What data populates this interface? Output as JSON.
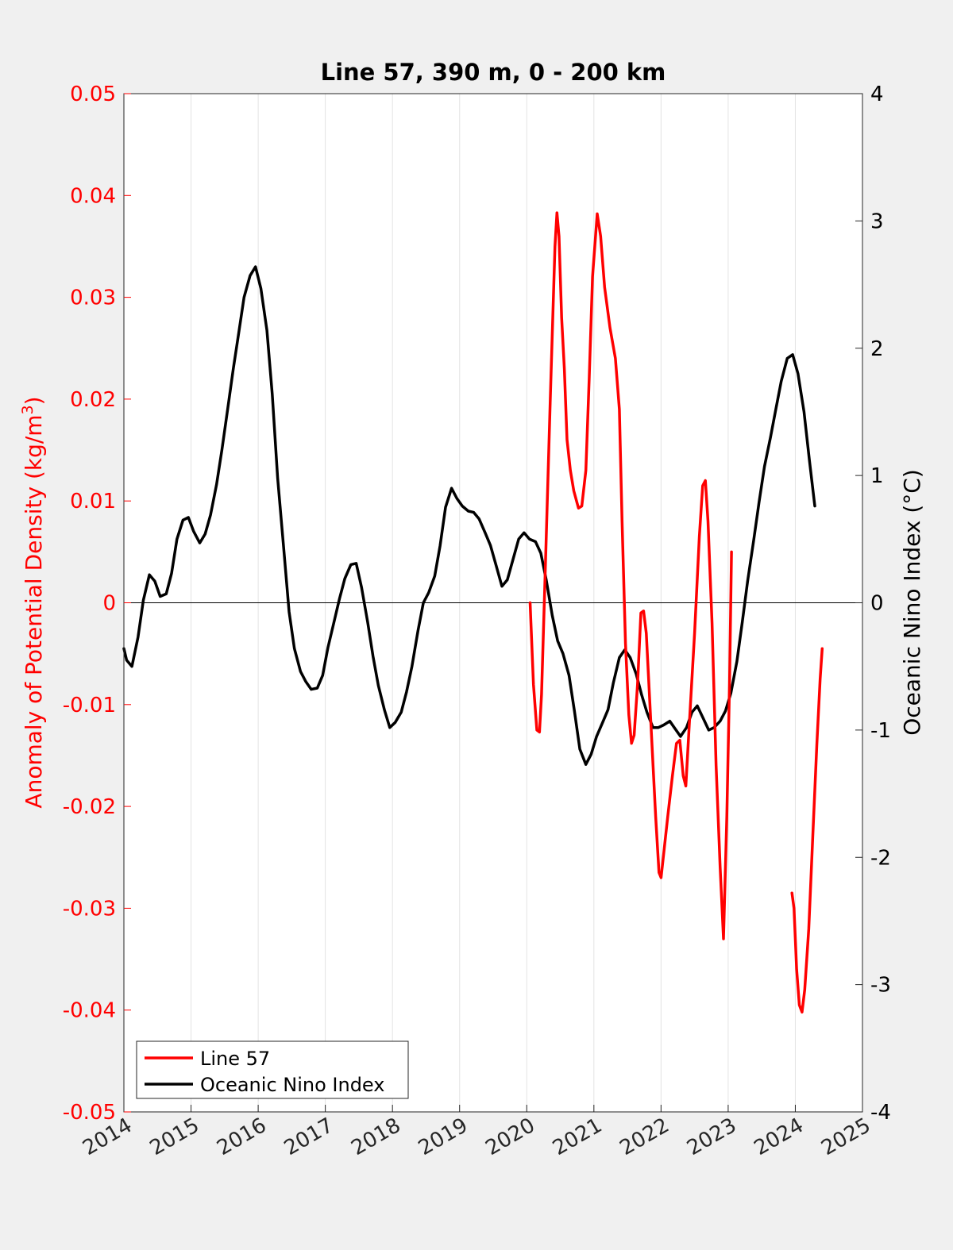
{
  "chart_data": {
    "type": "line",
    "title": "Line 57, 390 m, 0 - 200 km",
    "ylabel_left_prefix": "Anomaly of Potential Density (kg/m",
    "ylabel_left_sup": "3",
    "ylabel_left_suffix": ")",
    "ylabel_right": "Oceanic Nino Index (°C)",
    "xlim": [
      2014,
      2025
    ],
    "ylim_left": [
      -0.05,
      0.05
    ],
    "ylim_right": [
      -4,
      4
    ],
    "grid_x": true,
    "legend_position": "bottom-left",
    "x_ticks": [
      "2014",
      "2015",
      "2016",
      "2017",
      "2018",
      "2019",
      "2020",
      "2021",
      "2022",
      "2023",
      "2024",
      "2025"
    ],
    "y_left_ticks": [
      "-0.05",
      "-0.04",
      "-0.03",
      "-0.02",
      "-0.01",
      "0",
      "0.01",
      "0.02",
      "0.03",
      "0.04",
      "0.05"
    ],
    "y_right_ticks": [
      "-4",
      "-3",
      "-2",
      "-1",
      "0",
      "1",
      "2",
      "3",
      "4"
    ],
    "colors": {
      "line57": "#ff0000",
      "oni": "#000000",
      "left_axis": "#ff0000",
      "right_axis": "#000000"
    },
    "series": [
      {
        "name": "Line 57",
        "axis": "left",
        "segments": [
          [
            [
              2020.05,
              0.0
            ],
            [
              2020.1,
              -0.008
            ],
            [
              2020.15,
              -0.0125
            ],
            [
              2020.19,
              -0.0127
            ],
            [
              2020.22,
              -0.009
            ],
            [
              2020.28,
              0.004
            ],
            [
              2020.35,
              0.02
            ],
            [
              2020.42,
              0.035
            ],
            [
              2020.45,
              0.0383
            ],
            [
              2020.48,
              0.036
            ],
            [
              2020.52,
              0.028
            ],
            [
              2020.56,
              0.023
            ],
            [
              2020.6,
              0.016
            ],
            [
              2020.65,
              0.013
            ],
            [
              2020.7,
              0.011
            ],
            [
              2020.77,
              0.0093
            ],
            [
              2020.82,
              0.0095
            ],
            [
              2020.88,
              0.013
            ],
            [
              2020.93,
              0.022
            ],
            [
              2020.98,
              0.032
            ],
            [
              2021.05,
              0.0382
            ],
            [
              2021.1,
              0.036
            ],
            [
              2021.16,
              0.031
            ],
            [
              2021.24,
              0.027
            ],
            [
              2021.32,
              0.024
            ],
            [
              2021.38,
              0.019
            ],
            [
              2021.42,
              0.008
            ],
            [
              2021.47,
              -0.004
            ],
            [
              2021.52,
              -0.011
            ],
            [
              2021.56,
              -0.0138
            ],
            [
              2021.6,
              -0.013
            ],
            [
              2021.65,
              -0.008
            ],
            [
              2021.7,
              -0.001
            ],
            [
              2021.74,
              -0.0008
            ],
            [
              2021.78,
              -0.003
            ],
            [
              2021.85,
              -0.012
            ],
            [
              2021.92,
              -0.021
            ],
            [
              2021.97,
              -0.0265
            ],
            [
              2022.0,
              -0.027
            ],
            [
              2022.05,
              -0.024
            ],
            [
              2022.1,
              -0.021
            ],
            [
              2022.17,
              -0.017
            ],
            [
              2022.23,
              -0.0138
            ],
            [
              2022.28,
              -0.0135
            ],
            [
              2022.33,
              -0.017
            ],
            [
              2022.37,
              -0.018
            ],
            [
              2022.42,
              -0.012
            ],
            [
              2022.5,
              -0.003
            ],
            [
              2022.57,
              0.0065
            ],
            [
              2022.62,
              0.0115
            ],
            [
              2022.66,
              0.012
            ],
            [
              2022.7,
              0.008
            ],
            [
              2022.76,
              -0.002
            ],
            [
              2022.82,
              -0.016
            ],
            [
              2022.88,
              -0.026
            ],
            [
              2022.93,
              -0.033
            ],
            [
              2022.98,
              -0.021
            ],
            [
              2023.02,
              -0.008
            ],
            [
              2023.05,
              0.005
            ]
          ],
          [
            [
              2023.95,
              -0.0285
            ],
            [
              2023.98,
              -0.03
            ],
            [
              2024.02,
              -0.036
            ],
            [
              2024.06,
              -0.0395
            ],
            [
              2024.1,
              -0.0402
            ],
            [
              2024.14,
              -0.038
            ],
            [
              2024.2,
              -0.032
            ],
            [
              2024.26,
              -0.023
            ],
            [
              2024.32,
              -0.014
            ],
            [
              2024.37,
              -0.0075
            ],
            [
              2024.4,
              -0.0045
            ]
          ]
        ]
      },
      {
        "name": "Oceanic Nino Index",
        "axis": "right",
        "segments": [
          [
            [
              2014.0,
              -0.36
            ],
            [
              2014.04,
              -0.45
            ],
            [
              2014.12,
              -0.5
            ],
            [
              2014.21,
              -0.27
            ],
            [
              2014.29,
              0.02
            ],
            [
              2014.38,
              0.22
            ],
            [
              2014.46,
              0.17
            ],
            [
              2014.54,
              0.05
            ],
            [
              2014.63,
              0.07
            ],
            [
              2014.71,
              0.23
            ],
            [
              2014.79,
              0.5
            ],
            [
              2014.88,
              0.65
            ],
            [
              2014.96,
              0.67
            ],
            [
              2015.04,
              0.56
            ],
            [
              2015.13,
              0.47
            ],
            [
              2015.21,
              0.54
            ],
            [
              2015.29,
              0.69
            ],
            [
              2015.38,
              0.93
            ],
            [
              2015.46,
              1.2
            ],
            [
              2015.54,
              1.5
            ],
            [
              2015.63,
              1.84
            ],
            [
              2015.71,
              2.12
            ],
            [
              2015.79,
              2.4
            ],
            [
              2015.88,
              2.57
            ],
            [
              2015.96,
              2.64
            ],
            [
              2016.04,
              2.47
            ],
            [
              2016.13,
              2.14
            ],
            [
              2016.21,
              1.64
            ],
            [
              2016.29,
              0.98
            ],
            [
              2016.38,
              0.43
            ],
            [
              2016.46,
              -0.07
            ],
            [
              2016.54,
              -0.36
            ],
            [
              2016.63,
              -0.54
            ],
            [
              2016.71,
              -0.62
            ],
            [
              2016.79,
              -0.68
            ],
            [
              2016.88,
              -0.67
            ],
            [
              2016.96,
              -0.57
            ],
            [
              2017.04,
              -0.35
            ],
            [
              2017.13,
              -0.15
            ],
            [
              2017.21,
              0.03
            ],
            [
              2017.29,
              0.19
            ],
            [
              2017.38,
              0.3
            ],
            [
              2017.46,
              0.31
            ],
            [
              2017.54,
              0.12
            ],
            [
              2017.63,
              -0.15
            ],
            [
              2017.71,
              -0.42
            ],
            [
              2017.79,
              -0.65
            ],
            [
              2017.88,
              -0.84
            ],
            [
              2017.96,
              -0.98
            ],
            [
              2018.04,
              -0.94
            ],
            [
              2018.13,
              -0.86
            ],
            [
              2018.21,
              -0.7
            ],
            [
              2018.29,
              -0.5
            ],
            [
              2018.38,
              -0.22
            ],
            [
              2018.46,
              0.0
            ],
            [
              2018.54,
              0.08
            ],
            [
              2018.63,
              0.21
            ],
            [
              2018.71,
              0.45
            ],
            [
              2018.79,
              0.75
            ],
            [
              2018.88,
              0.9
            ],
            [
              2018.96,
              0.82
            ],
            [
              2019.04,
              0.76
            ],
            [
              2019.13,
              0.72
            ],
            [
              2019.21,
              0.71
            ],
            [
              2019.29,
              0.66
            ],
            [
              2019.38,
              0.55
            ],
            [
              2019.46,
              0.45
            ],
            [
              2019.54,
              0.3
            ],
            [
              2019.63,
              0.13
            ],
            [
              2019.71,
              0.18
            ],
            [
              2019.79,
              0.33
            ],
            [
              2019.88,
              0.5
            ],
            [
              2019.96,
              0.55
            ],
            [
              2020.04,
              0.5
            ],
            [
              2020.13,
              0.48
            ],
            [
              2020.21,
              0.39
            ],
            [
              2020.29,
              0.18
            ],
            [
              2020.38,
              -0.1
            ],
            [
              2020.46,
              -0.3
            ],
            [
              2020.54,
              -0.4
            ],
            [
              2020.63,
              -0.57
            ],
            [
              2020.71,
              -0.85
            ],
            [
              2020.79,
              -1.15
            ],
            [
              2020.88,
              -1.27
            ],
            [
              2020.96,
              -1.19
            ],
            [
              2021.04,
              -1.05
            ],
            [
              2021.13,
              -0.94
            ],
            [
              2021.21,
              -0.84
            ],
            [
              2021.29,
              -0.63
            ],
            [
              2021.38,
              -0.43
            ],
            [
              2021.46,
              -0.37
            ],
            [
              2021.54,
              -0.43
            ],
            [
              2021.63,
              -0.56
            ],
            [
              2021.71,
              -0.72
            ],
            [
              2021.79,
              -0.86
            ],
            [
              2021.88,
              -0.98
            ],
            [
              2021.96,
              -0.98
            ],
            [
              2022.04,
              -0.96
            ],
            [
              2022.13,
              -0.93
            ],
            [
              2022.21,
              -0.99
            ],
            [
              2022.29,
              -1.05
            ],
            [
              2022.38,
              -0.98
            ],
            [
              2022.46,
              -0.86
            ],
            [
              2022.54,
              -0.81
            ],
            [
              2022.63,
              -0.91
            ],
            [
              2022.71,
              -1.0
            ],
            [
              2022.79,
              -0.98
            ],
            [
              2022.88,
              -0.93
            ],
            [
              2022.96,
              -0.85
            ],
            [
              2023.04,
              -0.71
            ],
            [
              2023.13,
              -0.46
            ],
            [
              2023.21,
              -0.15
            ],
            [
              2023.29,
              0.17
            ],
            [
              2023.38,
              0.49
            ],
            [
              2023.46,
              0.79
            ],
            [
              2023.54,
              1.07
            ],
            [
              2023.63,
              1.3
            ],
            [
              2023.71,
              1.52
            ],
            [
              2023.79,
              1.74
            ],
            [
              2023.88,
              1.92
            ],
            [
              2023.96,
              1.95
            ],
            [
              2024.04,
              1.8
            ],
            [
              2024.13,
              1.5
            ],
            [
              2024.21,
              1.12
            ],
            [
              2024.29,
              0.76
            ]
          ]
        ]
      }
    ]
  }
}
